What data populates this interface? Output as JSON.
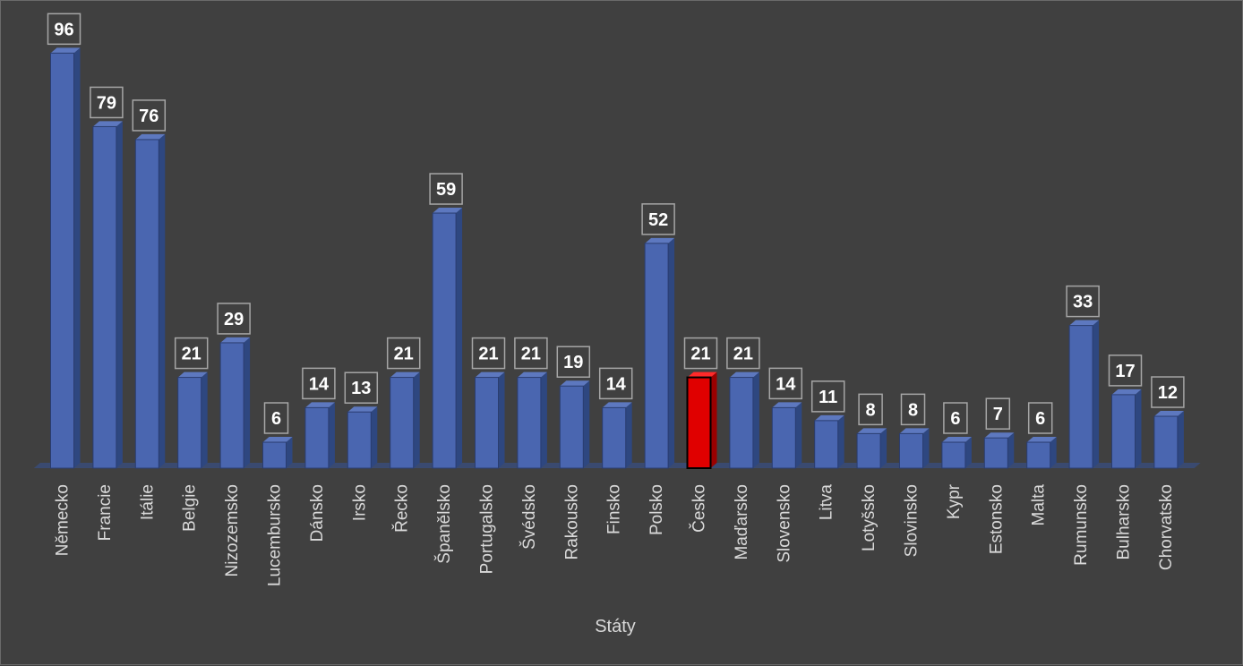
{
  "chart_data": {
    "type": "bar",
    "style": "3d-column",
    "categories": [
      "Německo",
      "Francie",
      "Itálie",
      "Belgie",
      "Nizozemsko",
      "Lucembursko",
      "Dánsko",
      "Irsko",
      "Řecko",
      "Španělsko",
      "Portugalsko",
      "Švédsko",
      "Rakousko",
      "Finsko",
      "Polsko",
      "Česko",
      "Maďarsko",
      "Slovensko",
      "Litva",
      "Lotyšsko",
      "Slovinsko",
      "Kypr",
      "Estonsko",
      "Malta",
      "Rumunsko",
      "Bulharsko",
      "Chorvatsko"
    ],
    "values": [
      96,
      79,
      76,
      21,
      29,
      6,
      14,
      13,
      21,
      59,
      21,
      21,
      19,
      14,
      52,
      21,
      21,
      14,
      11,
      8,
      8,
      6,
      7,
      6,
      33,
      17,
      12
    ],
    "highlight_category": "Česko",
    "title": "",
    "xlabel": "Státy",
    "ylabel": "",
    "ylim": [
      0,
      100
    ],
    "grid": false,
    "legend": "none",
    "data_labels": true,
    "colors": {
      "background": "#404040",
      "bar": "#4a66b0",
      "bar_side": "#2e4780",
      "bar_top": "#5d78bf",
      "highlight": "#e00000",
      "highlight_side": "#9a0000",
      "highlight_top": "#ff2a2a",
      "label_box": "#404040",
      "label_border": "#a6a6a6",
      "text": "#d9d9d9",
      "floor": "#3a4a70"
    }
  }
}
